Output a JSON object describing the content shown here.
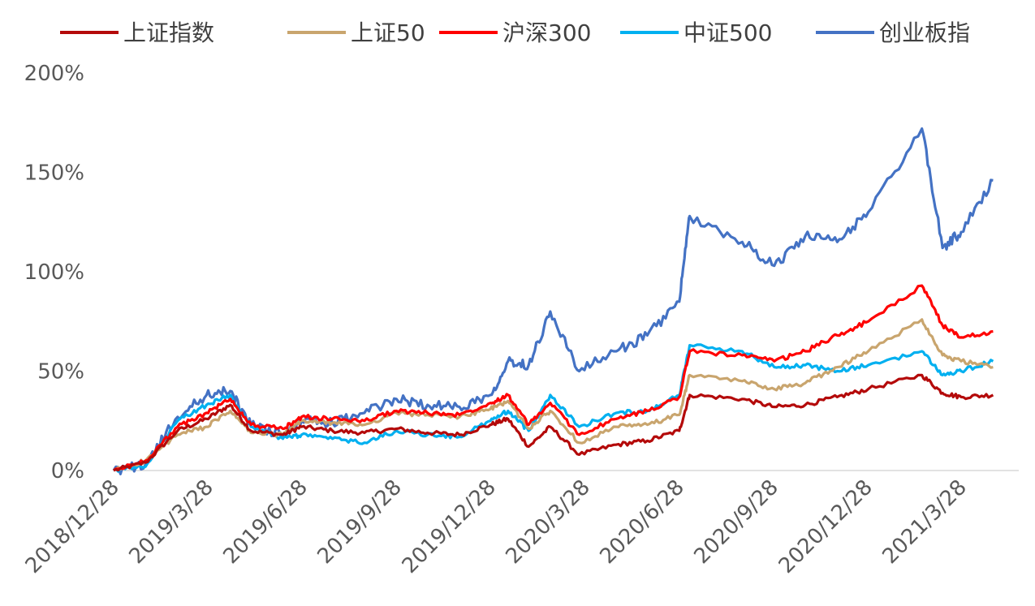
{
  "chart_data": {
    "type": "line",
    "title": "",
    "xlabel": "",
    "ylabel": "",
    "x_ticks": [
      "2018/12/28",
      "2019/3/28",
      "2019/6/28",
      "2019/9/28",
      "2019/12/28",
      "2020/3/28",
      "2020/6/28",
      "2020/9/28",
      "2020/12/28",
      "2021/3/28"
    ],
    "y_ticks": [
      "0%",
      "50%",
      "100%",
      "150%",
      "200%"
    ],
    "ylim": [
      0,
      200
    ],
    "y_unit": "%",
    "grid": false,
    "legend_position": "top",
    "series": [
      {
        "name": "上证指数",
        "color": "#b40a0a",
        "points": [
          [
            "2018/12/28",
            0
          ],
          [
            "2019/1/28",
            4
          ],
          [
            "2019/2/28",
            20
          ],
          [
            "2019/3/28",
            26
          ],
          [
            "2019/4/20",
            33
          ],
          [
            "2019/5/10",
            20
          ],
          [
            "2019/6/10",
            18
          ],
          [
            "2019/6/28",
            22
          ],
          [
            "2019/7/28",
            20
          ],
          [
            "2019/8/28",
            19
          ],
          [
            "2019/9/28",
            21
          ],
          [
            "2019/10/28",
            19
          ],
          [
            "2019/11/28",
            18
          ],
          [
            "2019/12/28",
            23
          ],
          [
            "2020/1/14",
            26
          ],
          [
            "2020/2/3",
            12
          ],
          [
            "2020/2/24",
            22
          ],
          [
            "2020/3/23",
            8
          ],
          [
            "2020/4/28",
            13
          ],
          [
            "2020/5/28",
            15
          ],
          [
            "2020/6/28",
            20
          ],
          [
            "2020/7/8",
            38
          ],
          [
            "2020/8/28",
            36
          ],
          [
            "2020/9/28",
            32
          ],
          [
            "2020/10/28",
            33
          ],
          [
            "2020/11/28",
            37
          ],
          [
            "2020/12/28",
            41
          ],
          [
            "2021/2/18",
            48
          ],
          [
            "2021/3/10",
            39
          ],
          [
            "2021/3/28",
            37
          ],
          [
            "2021/4/28",
            38
          ]
        ]
      },
      {
        "name": "上证50",
        "color": "#c9a56e",
        "points": [
          [
            "2018/12/28",
            0
          ],
          [
            "2019/1/28",
            5
          ],
          [
            "2019/2/28",
            18
          ],
          [
            "2019/3/28",
            22
          ],
          [
            "2019/4/20",
            30
          ],
          [
            "2019/5/10",
            19
          ],
          [
            "2019/6/10",
            18
          ],
          [
            "2019/6/28",
            25
          ],
          [
            "2019/7/28",
            24
          ],
          [
            "2019/8/28",
            23
          ],
          [
            "2019/9/28",
            29
          ],
          [
            "2019/10/28",
            28
          ],
          [
            "2019/11/28",
            27
          ],
          [
            "2019/12/28",
            31
          ],
          [
            "2020/1/14",
            35
          ],
          [
            "2020/2/3",
            21
          ],
          [
            "2020/2/24",
            30
          ],
          [
            "2020/3/23",
            14
          ],
          [
            "2020/4/28",
            22
          ],
          [
            "2020/5/28",
            23
          ],
          [
            "2020/6/28",
            28
          ],
          [
            "2020/7/8",
            48
          ],
          [
            "2020/8/28",
            45
          ],
          [
            "2020/9/28",
            41
          ],
          [
            "2020/10/28",
            44
          ],
          [
            "2020/11/28",
            52
          ],
          [
            "2020/12/28",
            60
          ],
          [
            "2021/2/18",
            76
          ],
          [
            "2021/3/10",
            58
          ],
          [
            "2021/3/28",
            55
          ],
          [
            "2021/4/28",
            52
          ]
        ]
      },
      {
        "name": "沪深300",
        "color": "#ff0000",
        "points": [
          [
            "2018/12/28",
            0
          ],
          [
            "2019/1/28",
            5
          ],
          [
            "2019/2/28",
            22
          ],
          [
            "2019/3/28",
            29
          ],
          [
            "2019/4/20",
            36
          ],
          [
            "2019/5/10",
            23
          ],
          [
            "2019/6/10",
            21
          ],
          [
            "2019/6/28",
            27
          ],
          [
            "2019/7/28",
            26
          ],
          [
            "2019/8/28",
            25
          ],
          [
            "2019/9/28",
            30
          ],
          [
            "2019/10/28",
            29
          ],
          [
            "2019/11/28",
            28
          ],
          [
            "2019/12/28",
            34
          ],
          [
            "2020/1/14",
            38
          ],
          [
            "2020/2/3",
            23
          ],
          [
            "2020/2/24",
            34
          ],
          [
            "2020/3/23",
            18
          ],
          [
            "2020/4/28",
            26
          ],
          [
            "2020/5/28",
            30
          ],
          [
            "2020/6/28",
            37
          ],
          [
            "2020/7/8",
            60
          ],
          [
            "2020/8/28",
            58
          ],
          [
            "2020/9/28",
            55
          ],
          [
            "2020/10/28",
            60
          ],
          [
            "2020/11/28",
            68
          ],
          [
            "2020/12/28",
            75
          ],
          [
            "2021/2/18",
            93
          ],
          [
            "2021/3/10",
            73
          ],
          [
            "2021/3/28",
            67
          ],
          [
            "2021/4/28",
            70
          ]
        ]
      },
      {
        "name": "中证500",
        "color": "#00b0f0",
        "points": [
          [
            "2018/12/28",
            0
          ],
          [
            "2019/1/28",
            2
          ],
          [
            "2019/2/28",
            25
          ],
          [
            "2019/3/28",
            33
          ],
          [
            "2019/4/20",
            38
          ],
          [
            "2019/5/10",
            22
          ],
          [
            "2019/6/10",
            16
          ],
          [
            "2019/6/28",
            18
          ],
          [
            "2019/7/28",
            16
          ],
          [
            "2019/8/28",
            14
          ],
          [
            "2019/9/28",
            20
          ],
          [
            "2019/10/28",
            18
          ],
          [
            "2019/11/28",
            17
          ],
          [
            "2019/12/28",
            25
          ],
          [
            "2020/1/14",
            30
          ],
          [
            "2020/2/3",
            20
          ],
          [
            "2020/2/24",
            38
          ],
          [
            "2020/3/23",
            22
          ],
          [
            "2020/4/28",
            29
          ],
          [
            "2020/5/28",
            30
          ],
          [
            "2020/6/28",
            38
          ],
          [
            "2020/7/8",
            63
          ],
          [
            "2020/8/28",
            60
          ],
          [
            "2020/9/28",
            52
          ],
          [
            "2020/10/28",
            53
          ],
          [
            "2020/11/28",
            50
          ],
          [
            "2020/12/28",
            53
          ],
          [
            "2021/2/18",
            60
          ],
          [
            "2021/3/10",
            48
          ],
          [
            "2021/3/28",
            50
          ],
          [
            "2021/4/28",
            55
          ]
        ]
      },
      {
        "name": "创业板指",
        "color": "#4472c4",
        "points": [
          [
            "2018/12/28",
            0
          ],
          [
            "2019/1/28",
            3
          ],
          [
            "2019/2/28",
            27
          ],
          [
            "2019/3/28",
            38
          ],
          [
            "2019/4/20",
            40
          ],
          [
            "2019/5/10",
            23
          ],
          [
            "2019/6/10",
            18
          ],
          [
            "2019/6/28",
            25
          ],
          [
            "2019/7/28",
            24
          ],
          [
            "2019/8/28",
            29
          ],
          [
            "2019/9/28",
            36
          ],
          [
            "2019/10/28",
            33
          ],
          [
            "2019/11/28",
            32
          ],
          [
            "2019/12/28",
            38
          ],
          [
            "2020/1/14",
            55
          ],
          [
            "2020/2/3",
            53
          ],
          [
            "2020/2/24",
            80
          ],
          [
            "2020/3/23",
            50
          ],
          [
            "2020/4/28",
            60
          ],
          [
            "2020/5/28",
            68
          ],
          [
            "2020/6/28",
            85
          ],
          [
            "2020/7/8",
            128
          ],
          [
            "2020/8/28",
            115
          ],
          [
            "2020/9/28",
            103
          ],
          [
            "2020/10/28",
            118
          ],
          [
            "2020/11/28",
            115
          ],
          [
            "2020/12/28",
            130
          ],
          [
            "2021/2/18",
            172
          ],
          [
            "2021/3/10",
            112
          ],
          [
            "2021/3/28",
            120
          ],
          [
            "2021/4/28",
            146
          ]
        ]
      }
    ]
  }
}
